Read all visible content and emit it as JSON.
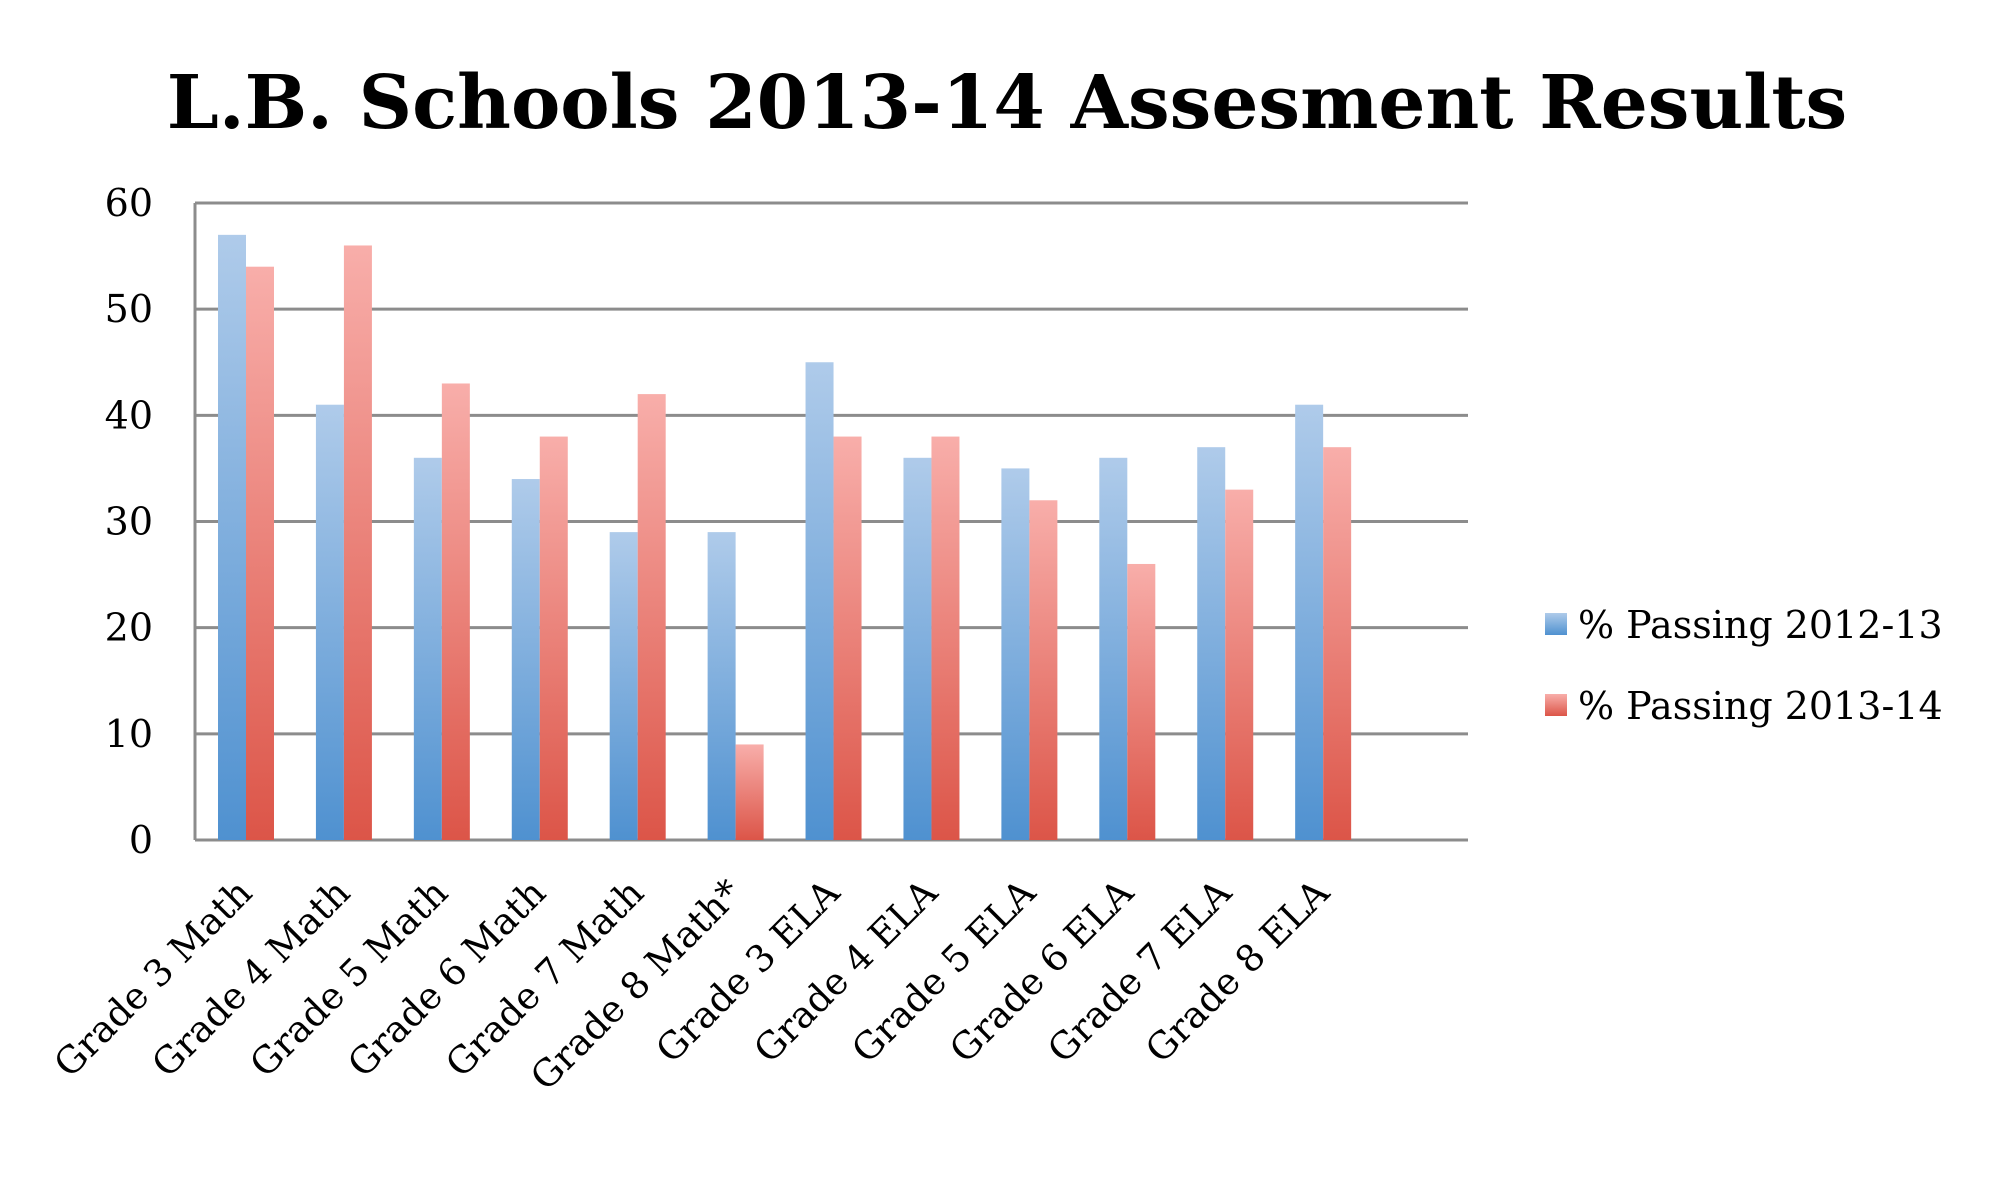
{
  "chart_data": {
    "type": "bar",
    "title": "L.B. Schools 2013-14 Assesment Results",
    "xlabel": "",
    "ylabel": "",
    "ylim": [
      0,
      60
    ],
    "yticks": [
      0,
      10,
      20,
      30,
      40,
      50,
      60
    ],
    "grid": true,
    "legend_position": "right",
    "categories": [
      "Grade 3 Math",
      "Grade 4 Math",
      "Grade 5 Math",
      "Grade 6 Math",
      "Grade 7 Math",
      "Grade 8 Math*",
      "Grade 3 ELA",
      "Grade 4 ELA",
      "Grade 5 ELA",
      "Grade 6 ELA",
      "Grade 7 ELA",
      "Grade 8 ELA"
    ],
    "series": [
      {
        "name": "% Passing 2012-13",
        "color": "#5b9bd5",
        "light": "#afcbea",
        "values": [
          57,
          41,
          36,
          34,
          29,
          29,
          45,
          36,
          35,
          36,
          37,
          41
        ]
      },
      {
        "name": "% Passing 2013-14",
        "color": "#dc5a4e",
        "light": "#f8aeaa",
        "values": [
          54,
          56,
          43,
          38,
          42,
          9,
          38,
          38,
          32,
          26,
          33,
          37
        ]
      }
    ]
  }
}
